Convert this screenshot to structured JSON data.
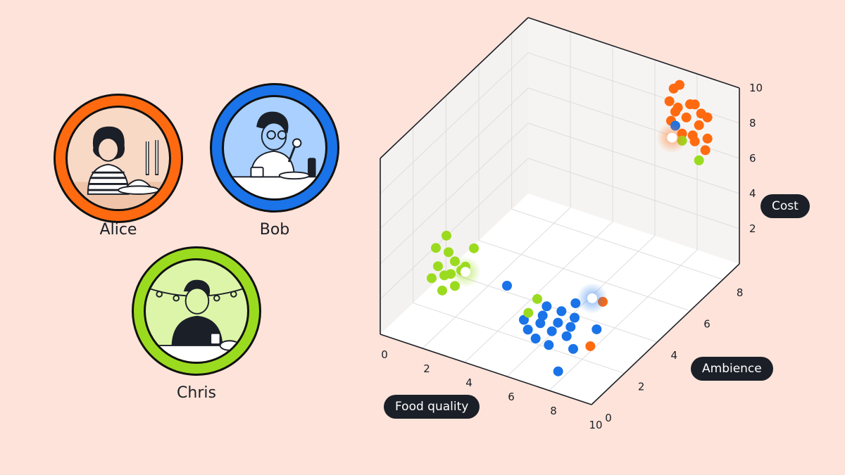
{
  "colors": {
    "background": "#FDE3D9",
    "alice": "#FF6A10",
    "bob": "#1A73E8",
    "chris": "#9BDB1F",
    "dark": "#1B1F27"
  },
  "people": [
    {
      "name": "Alice",
      "ring": "#FF6A10",
      "fill": "#F8D9C5",
      "icon": "diner-with-candles-icon"
    },
    {
      "name": "Bob",
      "ring": "#1A73E8",
      "fill": "#A9D0FF",
      "icon": "diner-eating-icon"
    },
    {
      "name": "Chris",
      "ring": "#9BDB1F",
      "fill": "#DDF5A9",
      "icon": "diner-with-lights-icon"
    }
  ],
  "chart_data": {
    "type": "scatter",
    "dimensions": 3,
    "xlabel": "Food quality",
    "ylabel": "Ambience",
    "zlabel": "Cost",
    "xlim": [
      0,
      10
    ],
    "ylim": [
      0,
      9
    ],
    "zlim": [
      0,
      10
    ],
    "xticks": [
      "0",
      "2",
      "4",
      "6",
      "8",
      "10"
    ],
    "yticks": [
      "0",
      "2",
      "4",
      "6",
      "8"
    ],
    "zticks": [
      "2",
      "4",
      "6",
      "8",
      "10"
    ],
    "series": [
      {
        "color": "#FF6A10",
        "centroid": [
          7.2,
          8.5,
          6.5
        ],
        "points": [
          [
            7.2,
            8.6,
            9.2
          ],
          [
            7.4,
            8.7,
            9.4
          ],
          [
            7.0,
            8.6,
            8.4
          ],
          [
            7.4,
            8.6,
            8.2
          ],
          [
            7.9,
            8.7,
            8.5
          ],
          [
            8.2,
            8.6,
            8.7
          ],
          [
            8.5,
            8.6,
            8.3
          ],
          [
            8.8,
            8.6,
            8.2
          ],
          [
            7.2,
            8.7,
            7.8
          ],
          [
            7.8,
            8.6,
            7.8
          ],
          [
            8.4,
            8.6,
            7.6
          ],
          [
            8.8,
            8.6,
            7.0
          ],
          [
            7.0,
            8.7,
            7.2
          ],
          [
            7.6,
            8.6,
            6.8
          ],
          [
            8.2,
            8.6,
            6.6
          ],
          [
            8.1,
            8.6,
            6.9
          ],
          [
            8.7,
            8.6,
            6.3
          ],
          [
            6.8,
            4.8,
            0.3
          ],
          [
            8.0,
            2.5,
            0.3
          ]
        ]
      },
      {
        "color": "#1A73E8",
        "centroid": [
          6.3,
          4.8,
          0.3
        ],
        "points": [
          [
            7.2,
            8.7,
            7.0
          ],
          [
            4.6,
            1.8,
            3.0
          ],
          [
            5.9,
            4.3,
            0.3
          ],
          [
            5.0,
            3.7,
            0.3
          ],
          [
            5.7,
            3.7,
            0.3
          ],
          [
            6.4,
            3.6,
            0.3
          ],
          [
            5.2,
            3.2,
            0.3
          ],
          [
            6.0,
            3.1,
            0.3
          ],
          [
            6.6,
            3.1,
            0.3
          ],
          [
            5.4,
            2.8,
            0.3
          ],
          [
            6.1,
            2.6,
            0.3
          ],
          [
            6.8,
            2.6,
            0.3
          ],
          [
            4.7,
            2.7,
            0.3
          ],
          [
            5.2,
            2.3,
            0.3
          ],
          [
            5.8,
            2.0,
            0.3
          ],
          [
            6.5,
            1.9,
            0.3
          ],
          [
            7.6,
            3.4,
            0.3
          ],
          [
            7.5,
            2.1,
            0.3
          ],
          [
            7.8,
            0.8,
            0.3
          ]
        ]
      },
      {
        "color": "#9BDB1F",
        "centroid": [
          3.8,
          0.3,
          4.8
        ],
        "points": [
          [
            2.9,
            0.3,
            6.5
          ],
          [
            4.2,
            0.3,
            6.3
          ],
          [
            2.4,
            0.3,
            5.6
          ],
          [
            3.0,
            0.3,
            5.6
          ],
          [
            3.3,
            0.3,
            5.2
          ],
          [
            3.6,
            0.3,
            4.8
          ],
          [
            3.8,
            0.3,
            5.1
          ],
          [
            2.5,
            0.3,
            4.6
          ],
          [
            2.8,
            0.3,
            4.2
          ],
          [
            3.1,
            0.3,
            4.4
          ],
          [
            3.3,
            0.3,
            3.8
          ],
          [
            2.2,
            0.3,
            3.8
          ],
          [
            2.7,
            0.3,
            3.3
          ],
          [
            4.4,
            3.9,
            0.3
          ],
          [
            4.6,
            3.1,
            0.3
          ],
          [
            7.6,
            8.6,
            6.4
          ],
          [
            8.4,
            8.6,
            5.6
          ]
        ]
      }
    ]
  }
}
